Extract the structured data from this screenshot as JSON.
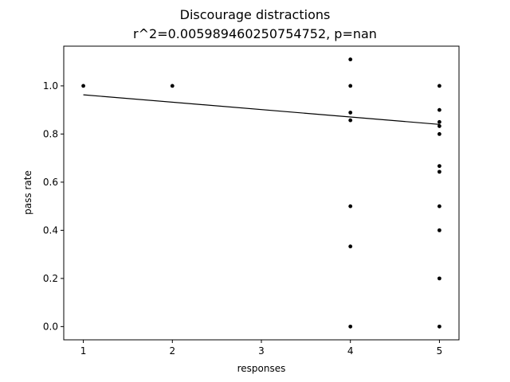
{
  "chart_data": {
    "type": "scatter",
    "title": "Discourage distractions",
    "subtitle": "r^2=0.005989460250754752, p=nan",
    "xlabel": "responses",
    "ylabel": "pass rate",
    "xlim": [
      0.78,
      5.22
    ],
    "ylim": [
      -0.055,
      1.165
    ],
    "xticks": [
      1,
      2,
      3,
      4,
      5
    ],
    "yticks": [
      0.0,
      0.2,
      0.4,
      0.6,
      0.8,
      1.0
    ],
    "ytick_labels": [
      "0.0",
      "0.2",
      "0.4",
      "0.6",
      "0.8",
      "1.0"
    ],
    "grid": false,
    "points": [
      {
        "x": 1,
        "y": 1.0
      },
      {
        "x": 2,
        "y": 1.0
      },
      {
        "x": 4,
        "y": 1.11
      },
      {
        "x": 4,
        "y": 1.0
      },
      {
        "x": 4,
        "y": 0.889
      },
      {
        "x": 4,
        "y": 0.857
      },
      {
        "x": 4,
        "y": 0.5
      },
      {
        "x": 4,
        "y": 0.333
      },
      {
        "x": 4,
        "y": 0.0
      },
      {
        "x": 5,
        "y": 1.0
      },
      {
        "x": 5,
        "y": 0.9
      },
      {
        "x": 5,
        "y": 0.85
      },
      {
        "x": 5,
        "y": 0.833
      },
      {
        "x": 5,
        "y": 0.8
      },
      {
        "x": 5,
        "y": 0.667
      },
      {
        "x": 5,
        "y": 0.643
      },
      {
        "x": 5,
        "y": 0.5
      },
      {
        "x": 5,
        "y": 0.4
      },
      {
        "x": 5,
        "y": 0.2
      },
      {
        "x": 5,
        "y": 0.0
      }
    ],
    "regression_line": {
      "x": [
        1,
        5
      ],
      "y": [
        0.963,
        0.84
      ]
    },
    "colors": {
      "points": "#000000",
      "line": "#000000",
      "axes": "#000000"
    }
  }
}
